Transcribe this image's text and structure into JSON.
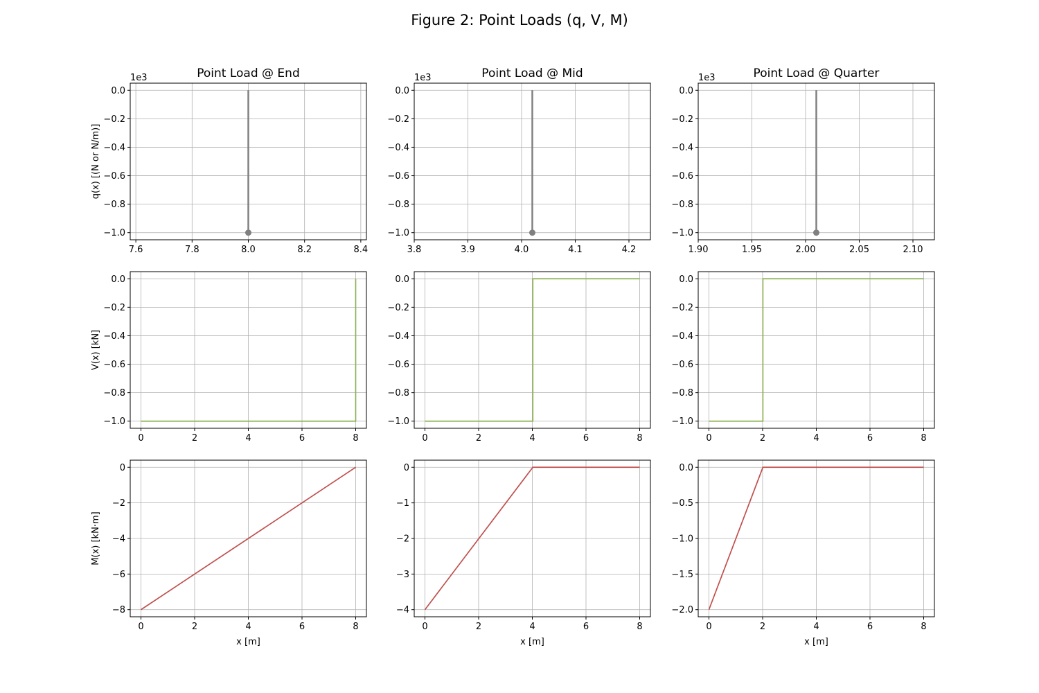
{
  "figure": {
    "title": "Figure 2: Point Loads (q, V, M)"
  },
  "colors": {
    "q": "#808080",
    "V": "#8db255",
    "M": "#c0504d"
  },
  "chart_data": [
    {
      "type": "line",
      "row": 0,
      "col": 0,
      "title": "Point Load @ End",
      "xlabel": "",
      "ylabel": "q(x) [(N or N/m)]",
      "offset_label": "1e3",
      "xlim": [
        7.58,
        8.42
      ],
      "ylim": [
        -1.05,
        0.05
      ],
      "xticks": [
        7.6,
        7.8,
        8.0,
        8.2,
        8.4
      ],
      "xtick_labels": [
        "7.6",
        "7.8",
        "8.0",
        "8.2",
        "8.4"
      ],
      "yticks": [
        0.0,
        -0.2,
        -0.4,
        -0.6,
        -0.8,
        -1.0
      ],
      "ytick_labels": [
        "0.0",
        "−0.2",
        "−0.4",
        "−0.6",
        "−0.8",
        "−1.0"
      ],
      "series": [
        {
          "kind": "stem",
          "x": [
            8.0
          ],
          "y": [
            -1.0
          ],
          "color": "#808080"
        }
      ]
    },
    {
      "type": "line",
      "row": 0,
      "col": 1,
      "title": "Point Load @ Mid",
      "xlabel": "",
      "ylabel": "",
      "offset_label": "1e3",
      "xlim": [
        3.8,
        4.24
      ],
      "ylim": [
        -1.05,
        0.05
      ],
      "xticks": [
        3.8,
        3.9,
        4.0,
        4.1,
        4.2
      ],
      "xtick_labels": [
        "3.8",
        "3.9",
        "4.0",
        "4.1",
        "4.2"
      ],
      "yticks": [
        0.0,
        -0.2,
        -0.4,
        -0.6,
        -0.8,
        -1.0
      ],
      "ytick_labels": [
        "0.0",
        "−0.2",
        "−0.4",
        "−0.6",
        "−0.8",
        "−1.0"
      ],
      "series": [
        {
          "kind": "stem",
          "x": [
            4.02
          ],
          "y": [
            -1.0
          ],
          "color": "#808080"
        }
      ]
    },
    {
      "type": "line",
      "row": 0,
      "col": 2,
      "title": "Point Load @ Quarter",
      "xlabel": "",
      "ylabel": "",
      "offset_label": "1e3",
      "xlim": [
        1.9,
        2.12
      ],
      "ylim": [
        -1.05,
        0.05
      ],
      "xticks": [
        1.9,
        1.95,
        2.0,
        2.05,
        2.1
      ],
      "xtick_labels": [
        "1.90",
        "1.95",
        "2.00",
        "2.05",
        "2.10"
      ],
      "yticks": [
        0.0,
        -0.2,
        -0.4,
        -0.6,
        -0.8,
        -1.0
      ],
      "ytick_labels": [
        "0.0",
        "−0.2",
        "−0.4",
        "−0.6",
        "−0.8",
        "−1.0"
      ],
      "series": [
        {
          "kind": "stem",
          "x": [
            2.01
          ],
          "y": [
            -1.0
          ],
          "color": "#808080"
        }
      ]
    },
    {
      "type": "line",
      "row": 1,
      "col": 0,
      "title": "",
      "xlabel": "",
      "ylabel": "V(x) [kN]",
      "offset_label": "",
      "xlim": [
        -0.4,
        8.4
      ],
      "ylim": [
        -1.05,
        0.05
      ],
      "xticks": [
        0,
        2,
        4,
        6,
        8
      ],
      "xtick_labels": [
        "0",
        "2",
        "4",
        "6",
        "8"
      ],
      "yticks": [
        0.0,
        -0.2,
        -0.4,
        -0.6,
        -0.8,
        -1.0
      ],
      "ytick_labels": [
        "0.0",
        "−0.2",
        "−0.4",
        "−0.6",
        "−0.8",
        "−1.0"
      ],
      "series": [
        {
          "kind": "line",
          "x": [
            0,
            8,
            8
          ],
          "y": [
            -1.0,
            -1.0,
            0.0
          ],
          "color": "#8db255"
        }
      ]
    },
    {
      "type": "line",
      "row": 1,
      "col": 1,
      "title": "",
      "xlabel": "",
      "ylabel": "",
      "offset_label": "",
      "xlim": [
        -0.4,
        8.4
      ],
      "ylim": [
        -1.05,
        0.05
      ],
      "xticks": [
        0,
        2,
        4,
        6,
        8
      ],
      "xtick_labels": [
        "0",
        "2",
        "4",
        "6",
        "8"
      ],
      "yticks": [
        0.0,
        -0.2,
        -0.4,
        -0.6,
        -0.8,
        -1.0
      ],
      "ytick_labels": [
        "0.0",
        "−0.2",
        "−0.4",
        "−0.6",
        "−0.8",
        "−1.0"
      ],
      "series": [
        {
          "kind": "line",
          "x": [
            0,
            4.02,
            4.02,
            8
          ],
          "y": [
            -1.0,
            -1.0,
            0.0,
            0.0
          ],
          "color": "#8db255"
        }
      ]
    },
    {
      "type": "line",
      "row": 1,
      "col": 2,
      "title": "",
      "xlabel": "",
      "ylabel": "",
      "offset_label": "",
      "xlim": [
        -0.4,
        8.4
      ],
      "ylim": [
        -1.05,
        0.05
      ],
      "xticks": [
        0,
        2,
        4,
        6,
        8
      ],
      "xtick_labels": [
        "0",
        "2",
        "4",
        "6",
        "8"
      ],
      "yticks": [
        0.0,
        -0.2,
        -0.4,
        -0.6,
        -0.8,
        -1.0
      ],
      "ytick_labels": [
        "0.0",
        "−0.2",
        "−0.4",
        "−0.6",
        "−0.8",
        "−1.0"
      ],
      "series": [
        {
          "kind": "line",
          "x": [
            0,
            2.01,
            2.01,
            8
          ],
          "y": [
            -1.0,
            -1.0,
            0.0,
            0.0
          ],
          "color": "#8db255"
        }
      ]
    },
    {
      "type": "line",
      "row": 2,
      "col": 0,
      "title": "",
      "xlabel": "x [m]",
      "ylabel": "M(x) [kN·m]",
      "offset_label": "",
      "xlim": [
        -0.4,
        8.4
      ],
      "ylim": [
        -8.4,
        0.4
      ],
      "xticks": [
        0,
        2,
        4,
        6,
        8
      ],
      "xtick_labels": [
        "0",
        "2",
        "4",
        "6",
        "8"
      ],
      "yticks": [
        0,
        -2,
        -4,
        -6,
        -8
      ],
      "ytick_labels": [
        "0",
        "−2",
        "−4",
        "−6",
        "−8"
      ],
      "series": [
        {
          "kind": "line",
          "x": [
            0,
            8
          ],
          "y": [
            -8,
            0
          ],
          "color": "#c0504d"
        }
      ]
    },
    {
      "type": "line",
      "row": 2,
      "col": 1,
      "title": "",
      "xlabel": "x [m]",
      "ylabel": "",
      "offset_label": "",
      "xlim": [
        -0.4,
        8.4
      ],
      "ylim": [
        -4.2,
        0.2
      ],
      "xticks": [
        0,
        2,
        4,
        6,
        8
      ],
      "xtick_labels": [
        "0",
        "2",
        "4",
        "6",
        "8"
      ],
      "yticks": [
        0,
        -1,
        -2,
        -3,
        -4
      ],
      "ytick_labels": [
        "0",
        "−1",
        "−2",
        "−3",
        "−4"
      ],
      "series": [
        {
          "kind": "line",
          "x": [
            0,
            4.02,
            8
          ],
          "y": [
            -4,
            0,
            0
          ],
          "color": "#c0504d"
        }
      ]
    },
    {
      "type": "line",
      "row": 2,
      "col": 2,
      "title": "",
      "xlabel": "x [m]",
      "ylabel": "",
      "offset_label": "",
      "xlim": [
        -0.4,
        8.4
      ],
      "ylim": [
        -2.1,
        0.1
      ],
      "xticks": [
        0,
        2,
        4,
        6,
        8
      ],
      "xtick_labels": [
        "0",
        "2",
        "4",
        "6",
        "8"
      ],
      "yticks": [
        0.0,
        -0.5,
        -1.0,
        -1.5,
        -2.0
      ],
      "ytick_labels": [
        "0.0",
        "−0.5",
        "−1.0",
        "−1.5",
        "−2.0"
      ],
      "series": [
        {
          "kind": "line",
          "x": [
            0,
            2.01,
            8
          ],
          "y": [
            -2,
            0,
            0
          ],
          "color": "#c0504d"
        }
      ]
    }
  ]
}
